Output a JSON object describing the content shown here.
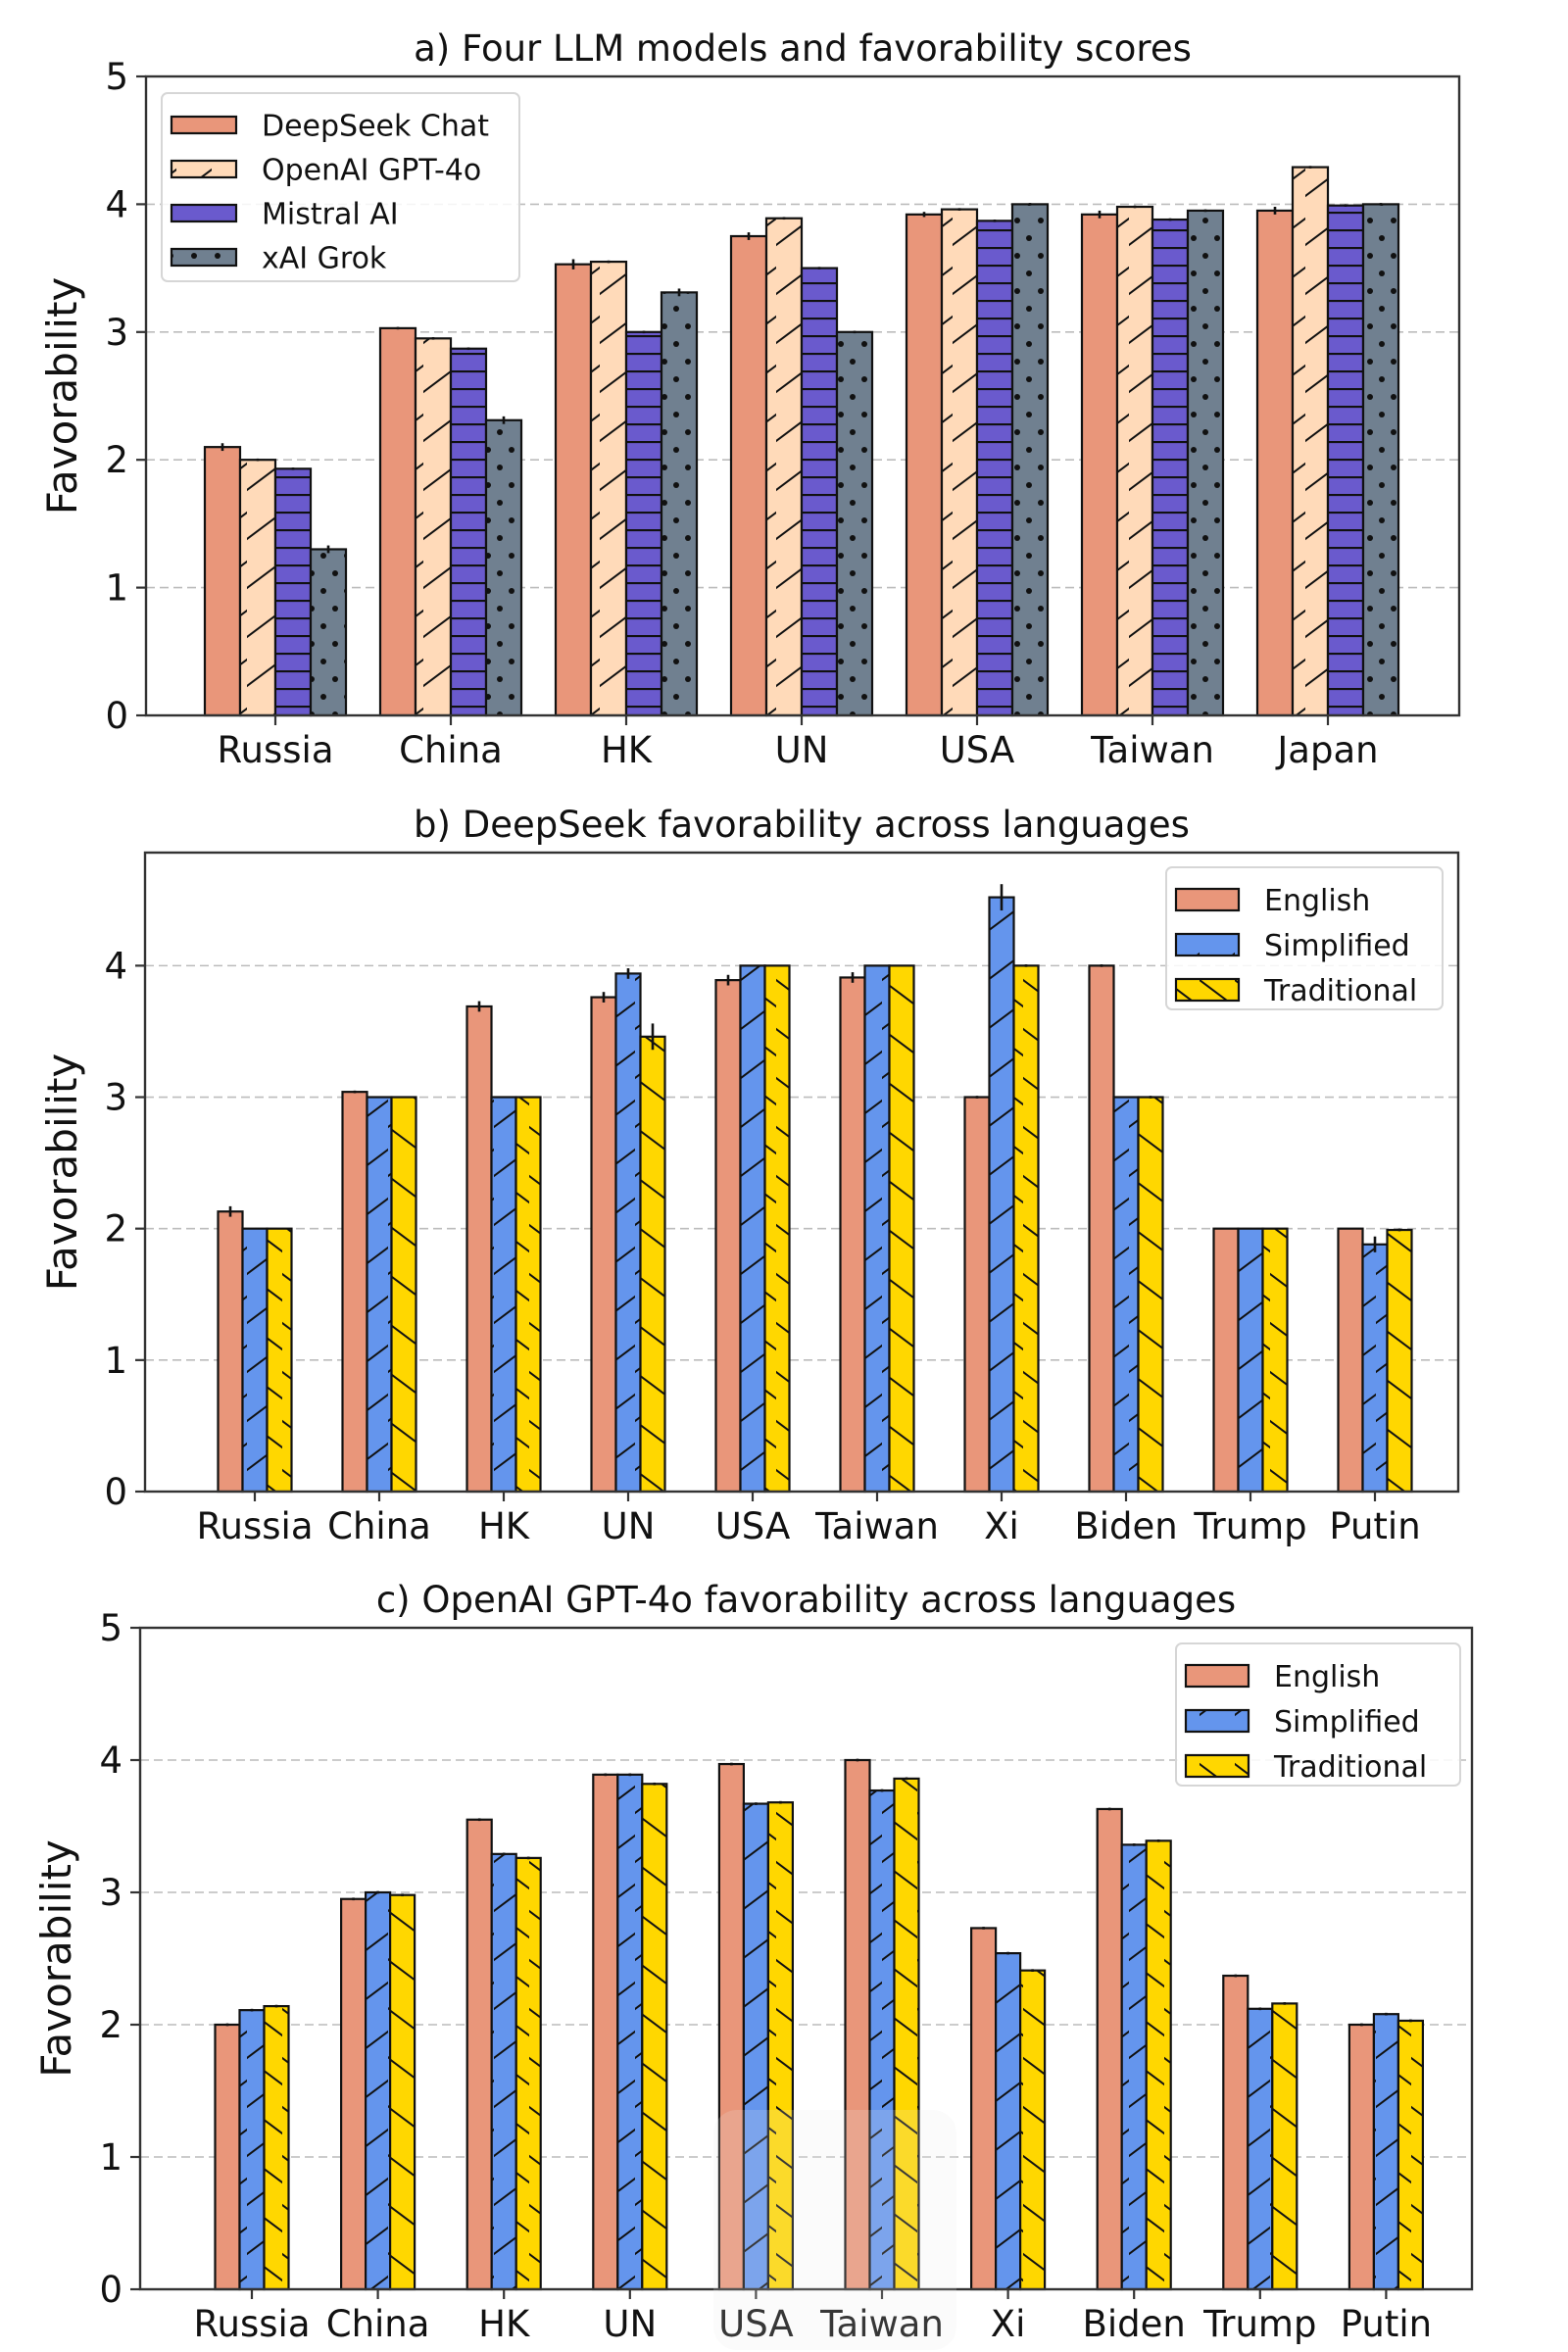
{
  "figure": {
    "ylabel": "Favorability"
  },
  "chart_data": [
    {
      "type": "bar",
      "title": "a) Four LLM models and favorability scores",
      "xlabel": "",
      "ylabel": "Favorability",
      "ylim": [
        0,
        5
      ],
      "yticks": [
        0,
        1,
        2,
        3,
        4,
        5
      ],
      "grid": true,
      "legend_position": "top-left",
      "categories": [
        "Russia",
        "China",
        "HK",
        "UN",
        "USA",
        "Taiwan",
        "Japan"
      ],
      "series": [
        {
          "name": "DeepSeek Chat",
          "color": "#E9967A",
          "hatch": "none",
          "values": [
            2.1,
            3.03,
            3.53,
            3.75,
            3.92,
            3.92,
            3.95
          ],
          "errors": [
            0.03,
            0.01,
            0.04,
            0.03,
            0.02,
            0.03,
            0.03
          ]
        },
        {
          "name": "OpenAI GPT-4o",
          "color": "#FFDAB9",
          "hatch": "diagonal-forward",
          "values": [
            2.0,
            2.95,
            3.55,
            3.89,
            3.96,
            3.98,
            4.29
          ],
          "errors": [
            0.01,
            0.01,
            0.01,
            0.01,
            0.01,
            0.01,
            0.01
          ]
        },
        {
          "name": "Mistral AI",
          "color": "#6A5ACD",
          "hatch": "horizontal",
          "values": [
            1.93,
            2.87,
            3.0,
            3.5,
            3.87,
            3.88,
            3.99
          ],
          "errors": [
            0.01,
            0.01,
            0.01,
            0.01,
            0.01,
            0.01,
            0.01
          ]
        },
        {
          "name": "xAI Grok",
          "color": "#708090",
          "hatch": "dots",
          "values": [
            1.3,
            2.31,
            3.31,
            3.0,
            4.0,
            3.95,
            4.0
          ],
          "errors": [
            0.03,
            0.03,
            0.03,
            0.01,
            0.01,
            0.01,
            0.01
          ]
        }
      ]
    },
    {
      "type": "bar",
      "title": "b) DeepSeek favorability across languages",
      "xlabel": "",
      "ylabel": "Favorability",
      "ylim": [
        0,
        4.86
      ],
      "yticks": [
        0,
        1,
        2,
        3,
        4
      ],
      "grid": true,
      "legend_position": "top-right",
      "categories": [
        "Russia",
        "China",
        "HK",
        "UN",
        "USA",
        "Taiwan",
        "Xi",
        "Biden",
        "Trump",
        "Putin"
      ],
      "series": [
        {
          "name": "English",
          "color": "#E9967A",
          "hatch": "none",
          "values": [
            2.13,
            3.04,
            3.69,
            3.76,
            3.89,
            3.91,
            3.0,
            4.0,
            2.0,
            2.0
          ],
          "errors": [
            0.04,
            0.01,
            0.04,
            0.04,
            0.04,
            0.04,
            0.01,
            0.01,
            0.0,
            0.0
          ]
        },
        {
          "name": "Simplified",
          "color": "#6495ED",
          "hatch": "diagonal-forward",
          "values": [
            2.0,
            3.0,
            3.0,
            3.94,
            4.0,
            4.0,
            4.52,
            3.0,
            2.0,
            1.88
          ],
          "errors": [
            0.0,
            0.0,
            0.0,
            0.04,
            0.0,
            0.0,
            0.1,
            0.0,
            0.0,
            0.06
          ]
        },
        {
          "name": "Traditional",
          "color": "#FFD700",
          "hatch": "diagonal-back",
          "values": [
            2.0,
            3.0,
            3.0,
            3.46,
            4.0,
            4.0,
            4.0,
            3.0,
            2.0,
            1.99
          ],
          "errors": [
            0.0,
            0.0,
            0.0,
            0.1,
            0.0,
            0.0,
            0.01,
            0.01,
            0.0,
            0.01
          ]
        }
      ]
    },
    {
      "type": "bar",
      "title": "c) OpenAI GPT-4o favorability across languages",
      "xlabel": "",
      "ylabel": "Favorability",
      "ylim": [
        0,
        5
      ],
      "yticks": [
        0,
        1,
        2,
        3,
        4,
        5
      ],
      "grid": true,
      "legend_position": "top-right",
      "categories": [
        "Russia",
        "China",
        "HK",
        "UN",
        "USA",
        "Taiwan",
        "Xi",
        "Biden",
        "Trump",
        "Putin"
      ],
      "series": [
        {
          "name": "English",
          "color": "#E9967A",
          "hatch": "none",
          "values": [
            2.0,
            2.95,
            3.55,
            3.89,
            3.97,
            4.0,
            2.73,
            3.63,
            2.37,
            2.0
          ],
          "errors": [
            0.01,
            0.01,
            0.01,
            0.01,
            0.01,
            0.01,
            0.01,
            0.01,
            0.01,
            0.01
          ]
        },
        {
          "name": "Simplified",
          "color": "#6495ED",
          "hatch": "diagonal-forward",
          "values": [
            2.11,
            3.0,
            3.29,
            3.89,
            3.67,
            3.77,
            2.54,
            3.36,
            2.12,
            2.08
          ],
          "errors": [
            0.01,
            0.01,
            0.01,
            0.01,
            0.01,
            0.01,
            0.01,
            0.01,
            0.01,
            0.01
          ]
        },
        {
          "name": "Traditional",
          "color": "#FFD700",
          "hatch": "diagonal-back",
          "values": [
            2.14,
            2.98,
            3.26,
            3.82,
            3.68,
            3.86,
            2.41,
            3.39,
            2.16,
            2.03
          ],
          "errors": [
            0.01,
            0.01,
            0.01,
            0.01,
            0.01,
            0.01,
            0.01,
            0.01,
            0.01,
            0.01
          ]
        }
      ]
    }
  ]
}
